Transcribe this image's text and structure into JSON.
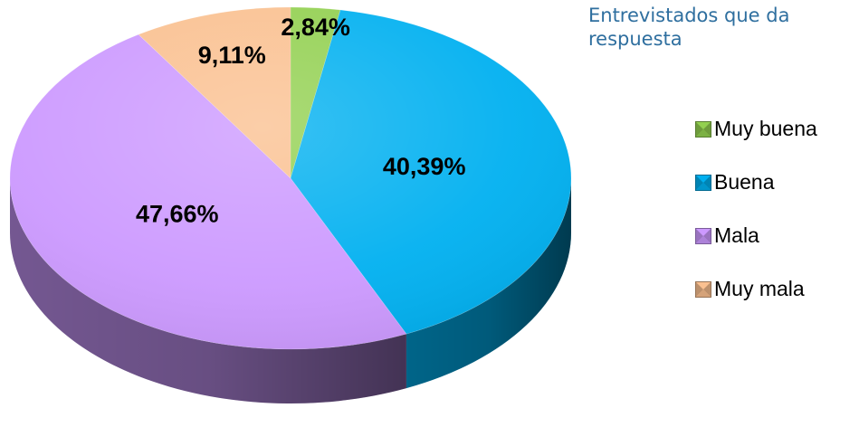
{
  "chart_data": {
    "type": "pie",
    "title": "Entrevistados que da respuesta",
    "title_lines": [
      "Entrevistados que da",
      "respuesta"
    ],
    "categories": [
      "Muy buena",
      "Buena",
      "Mala",
      "Muy mala"
    ],
    "values": [
      2.84,
      40.39,
      47.66,
      9.11
    ],
    "value_labels": [
      "2,84%",
      "40,39%",
      "47,66%",
      "9,11%"
    ],
    "colors": [
      "#92d050",
      "#00b0f0",
      "#cc99ff",
      "#fac090"
    ],
    "legend_position": "right",
    "style": "3d"
  }
}
